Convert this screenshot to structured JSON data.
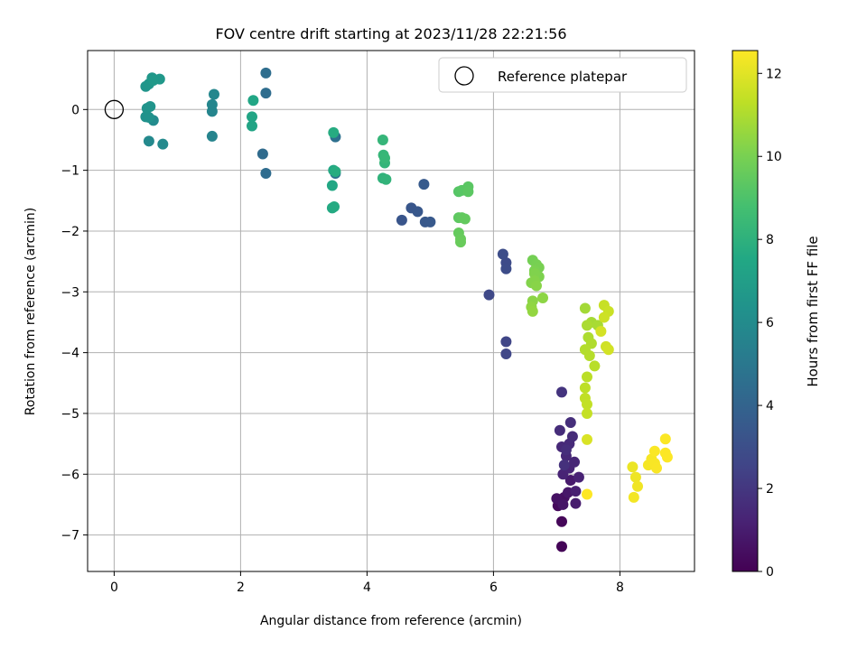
{
  "chart_data": {
    "type": "scatter",
    "title": "FOV centre drift starting at 2023/11/28 22:21:56",
    "xlabel": "Angular distance from reference (arcmin)",
    "ylabel": "Rotation from reference (arcmin)",
    "xlim": [
      -0.42,
      9.18
    ],
    "ylim": [
      -7.6,
      0.97
    ],
    "xticks": [
      0,
      2,
      4,
      6,
      8
    ],
    "yticks": [
      0,
      -1,
      -2,
      -3,
      -4,
      -5,
      -6,
      -7
    ],
    "grid": true,
    "legend": {
      "location": "top-right",
      "entries": [
        "Reference platepar"
      ]
    },
    "reference_point": {
      "x": 0,
      "y": 0
    },
    "colorbar": {
      "label": "Hours from first FF file",
      "min": 0,
      "max": 12.55,
      "ticks": [
        0,
        2,
        4,
        6,
        8,
        10,
        12
      ],
      "colormap": "viridis"
    },
    "points": [
      [
        7.08,
        -7.19,
        0.1
      ],
      [
        7.08,
        -6.78,
        0.2
      ],
      [
        7.02,
        -6.52,
        0.3
      ],
      [
        7.04,
        -6.42,
        0.4
      ],
      [
        7.12,
        -6.38,
        0.5
      ],
      [
        7.0,
        -6.4,
        0.6
      ],
      [
        7.1,
        -6.5,
        0.7
      ],
      [
        7.18,
        -6.3,
        0.8
      ],
      [
        7.22,
        -6.1,
        0.9
      ],
      [
        7.3,
        -6.48,
        1.0
      ],
      [
        7.3,
        -6.28,
        1.1
      ],
      [
        7.35,
        -6.05,
        1.2
      ],
      [
        7.1,
        -6.0,
        1.25
      ],
      [
        7.2,
        -5.9,
        1.3
      ],
      [
        7.28,
        -5.8,
        1.35
      ],
      [
        7.15,
        -5.7,
        1.4
      ],
      [
        7.08,
        -5.55,
        1.45
      ],
      [
        7.2,
        -5.5,
        1.5
      ],
      [
        7.25,
        -5.38,
        1.55
      ],
      [
        7.05,
        -5.28,
        1.6
      ],
      [
        7.15,
        -5.6,
        1.65
      ],
      [
        7.22,
        -5.15,
        1.7
      ],
      [
        7.12,
        -5.85,
        1.75
      ],
      [
        7.08,
        -4.65,
        1.9
      ],
      [
        6.2,
        -3.82,
        2.6
      ],
      [
        6.2,
        -4.02,
        2.65
      ],
      [
        5.93,
        -3.05,
        2.75
      ],
      [
        6.2,
        -2.52,
        2.85
      ],
      [
        6.2,
        -2.62,
        2.9
      ],
      [
        6.15,
        -2.38,
        2.95
      ],
      [
        4.55,
        -1.82,
        3.3
      ],
      [
        4.7,
        -1.62,
        3.35
      ],
      [
        4.8,
        -1.68,
        3.4
      ],
      [
        4.92,
        -1.85,
        3.45
      ],
      [
        5.0,
        -1.85,
        3.5
      ],
      [
        4.9,
        -1.23,
        3.55
      ],
      [
        2.35,
        -0.73,
        4.35
      ],
      [
        2.4,
        -1.05,
        4.4
      ],
      [
        2.4,
        0.27,
        4.45
      ],
      [
        2.4,
        0.6,
        4.5
      ],
      [
        3.5,
        -0.45,
        4.6
      ],
      [
        3.5,
        -1.05,
        4.7
      ],
      [
        1.55,
        -0.44,
        5.6
      ],
      [
        1.55,
        -0.03,
        5.65
      ],
      [
        1.55,
        0.08,
        5.7
      ],
      [
        1.58,
        0.25,
        5.75
      ],
      [
        0.55,
        -0.52,
        5.85
      ],
      [
        0.77,
        -0.57,
        5.9
      ],
      [
        0.62,
        -0.18,
        5.95
      ],
      [
        0.5,
        -0.12,
        6.3
      ],
      [
        0.55,
        -0.13,
        6.35
      ],
      [
        0.52,
        0.02,
        6.4
      ],
      [
        0.57,
        0.05,
        6.45
      ],
      [
        0.5,
        0.38,
        6.5
      ],
      [
        0.55,
        0.42,
        6.55
      ],
      [
        0.6,
        0.52,
        6.6
      ],
      [
        0.72,
        0.5,
        6.65
      ],
      [
        0.62,
        0.48,
        6.7
      ],
      [
        2.18,
        -0.27,
        7.3
      ],
      [
        2.18,
        -0.12,
        7.35
      ],
      [
        2.2,
        0.15,
        7.4
      ],
      [
        3.45,
        -1.25,
        7.5
      ],
      [
        3.47,
        -1.0,
        7.55
      ],
      [
        3.45,
        -1.62,
        7.6
      ],
      [
        3.48,
        -1.6,
        7.65
      ],
      [
        3.47,
        -0.38,
        7.7
      ],
      [
        3.5,
        -1.02,
        7.75
      ],
      [
        4.25,
        -1.13,
        8.1
      ],
      [
        4.3,
        -1.15,
        8.15
      ],
      [
        4.28,
        -0.88,
        8.2
      ],
      [
        4.25,
        -0.5,
        8.25
      ],
      [
        4.26,
        -0.75,
        8.3
      ],
      [
        4.28,
        -0.8,
        8.35
      ],
      [
        5.45,
        -1.35,
        9.2
      ],
      [
        5.5,
        -1.33,
        9.25
      ],
      [
        5.6,
        -1.27,
        9.3
      ],
      [
        5.6,
        -1.35,
        9.35
      ],
      [
        5.45,
        -1.78,
        9.4
      ],
      [
        5.5,
        -1.78,
        9.45
      ],
      [
        5.55,
        -1.8,
        9.5
      ],
      [
        5.45,
        -2.03,
        9.55
      ],
      [
        5.48,
        -2.13,
        9.6
      ],
      [
        5.48,
        -2.18,
        9.65
      ],
      [
        6.62,
        -2.48,
        9.9
      ],
      [
        6.68,
        -2.55,
        9.95
      ],
      [
        6.72,
        -2.6,
        10.0
      ],
      [
        6.65,
        -2.65,
        10.05
      ],
      [
        6.72,
        -2.75,
        10.1
      ],
      [
        6.65,
        -2.7,
        10.15
      ],
      [
        6.6,
        -2.85,
        10.2
      ],
      [
        6.65,
        -2.82,
        10.25
      ],
      [
        6.68,
        -2.9,
        10.3
      ],
      [
        6.62,
        -3.15,
        10.35
      ],
      [
        6.78,
        -3.1,
        10.4
      ],
      [
        6.6,
        -3.25,
        10.45
      ],
      [
        6.62,
        -3.32,
        10.5
      ],
      [
        7.45,
        -3.27,
        10.8
      ],
      [
        7.55,
        -3.5,
        10.85
      ],
      [
        7.65,
        -3.55,
        10.9
      ],
      [
        7.48,
        -3.55,
        10.95
      ],
      [
        7.5,
        -3.75,
        11.0
      ],
      [
        7.55,
        -3.85,
        11.05
      ],
      [
        7.45,
        -3.95,
        11.1
      ],
      [
        7.52,
        -4.05,
        11.15
      ],
      [
        7.6,
        -4.22,
        11.2
      ],
      [
        7.48,
        -4.4,
        11.25
      ],
      [
        7.45,
        -4.58,
        11.3
      ],
      [
        7.45,
        -4.75,
        11.35
      ],
      [
        7.48,
        -4.85,
        11.4
      ],
      [
        7.48,
        -5.0,
        11.45
      ],
      [
        7.75,
        -3.22,
        11.5
      ],
      [
        7.82,
        -3.32,
        11.55
      ],
      [
        7.75,
        -3.42,
        11.6
      ],
      [
        7.78,
        -3.9,
        11.65
      ],
      [
        7.82,
        -3.95,
        11.7
      ],
      [
        7.7,
        -3.65,
        11.75
      ],
      [
        7.48,
        -5.43,
        11.85
      ],
      [
        8.2,
        -5.88,
        12.2
      ],
      [
        8.25,
        -6.05,
        12.25
      ],
      [
        8.28,
        -6.2,
        12.3
      ],
      [
        8.22,
        -6.38,
        12.35
      ],
      [
        8.45,
        -5.85,
        12.4
      ],
      [
        8.5,
        -5.75,
        12.42
      ],
      [
        8.55,
        -5.82,
        12.45
      ],
      [
        8.58,
        -5.9,
        12.47
      ],
      [
        8.55,
        -5.62,
        12.5
      ],
      [
        8.72,
        -5.42,
        12.52
      ],
      [
        8.72,
        -5.65,
        12.53
      ],
      [
        8.75,
        -5.72,
        12.54
      ],
      [
        7.48,
        -6.33,
        12.55
      ]
    ]
  }
}
